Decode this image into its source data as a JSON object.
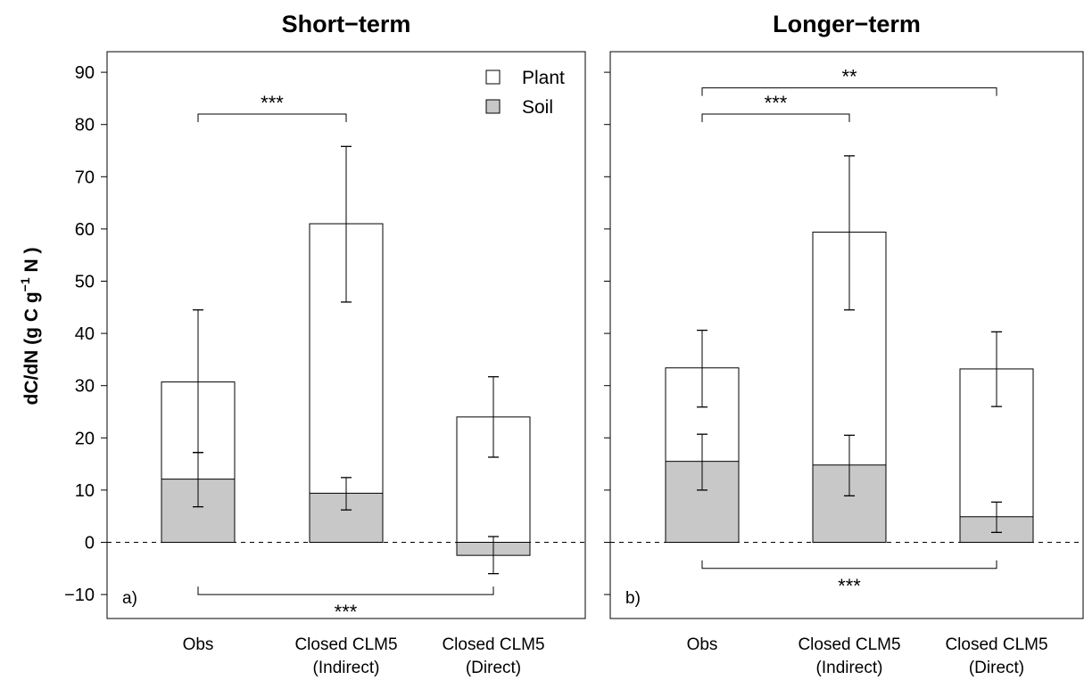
{
  "chart_data": [
    {
      "type": "bar",
      "stacked": true,
      "title": "Short−term",
      "panel_label": "a)",
      "ylabel_parts": [
        "dC/dN (g C g",
        "−1",
        " N )"
      ],
      "ylim": [
        -13,
        95
      ],
      "yticks": [
        -10,
        0,
        10,
        20,
        30,
        40,
        50,
        60,
        70,
        80,
        90
      ],
      "ytick_labels": [
        "−10",
        "0",
        "10",
        "20",
        "30",
        "40",
        "50",
        "60",
        "70",
        "80",
        "90"
      ],
      "zero_line": "dashed",
      "categories": [
        {
          "line1": "Obs",
          "line2": ""
        },
        {
          "line1": "Closed CLM5",
          "line2": "(Indirect)"
        },
        {
          "line1": "Closed CLM5",
          "line2": "(Direct)"
        }
      ],
      "series": [
        {
          "name": "Soil",
          "color": "#c8c8c8",
          "values": [
            12.1,
            9.4,
            -2.5
          ],
          "err_low": [
            6.8,
            6.2,
            -6.0
          ],
          "err_high": [
            17.2,
            12.4,
            1.1
          ]
        },
        {
          "name": "Plant",
          "color": "#ffffff",
          "total": [
            30.7,
            61.0,
            24.0
          ],
          "err_low": [
            17.2,
            46.0,
            16.3
          ],
          "err_high": [
            44.5,
            75.8,
            31.7
          ]
        }
      ],
      "legend": {
        "position": "top-right",
        "entries": [
          "Plant",
          "Soil"
        ]
      },
      "significance": [
        {
          "from": 0,
          "to": 1,
          "label": "***",
          "y": 82,
          "side": "above"
        },
        {
          "from": 0,
          "to": 2,
          "label": "***",
          "y": -10,
          "side": "below"
        }
      ]
    },
    {
      "type": "bar",
      "stacked": true,
      "title": "Longer−term",
      "panel_label": "b)",
      "ylim": [
        -13,
        95
      ],
      "zero_line": "dashed",
      "categories": [
        {
          "line1": "Obs",
          "line2": ""
        },
        {
          "line1": "Closed CLM5",
          "line2": "(Indirect)"
        },
        {
          "line1": "Closed CLM5",
          "line2": "(Direct)"
        }
      ],
      "series": [
        {
          "name": "Soil",
          "color": "#c8c8c8",
          "values": [
            15.5,
            14.8,
            4.9
          ],
          "err_low": [
            10.0,
            8.9,
            1.9
          ],
          "err_high": [
            20.7,
            20.5,
            7.7
          ]
        },
        {
          "name": "Plant",
          "color": "#ffffff",
          "total": [
            33.4,
            59.4,
            33.2
          ],
          "err_low": [
            25.9,
            44.5,
            26.0
          ],
          "err_high": [
            40.6,
            74.0,
            40.3
          ]
        }
      ],
      "significance": [
        {
          "from": 0,
          "to": 2,
          "label": "**",
          "y": 87,
          "side": "above"
        },
        {
          "from": 0,
          "to": 1,
          "label": "***",
          "y": 82,
          "side": "above"
        },
        {
          "from": 0,
          "to": 2,
          "label": "***",
          "y": -5,
          "side": "below"
        }
      ]
    }
  ]
}
